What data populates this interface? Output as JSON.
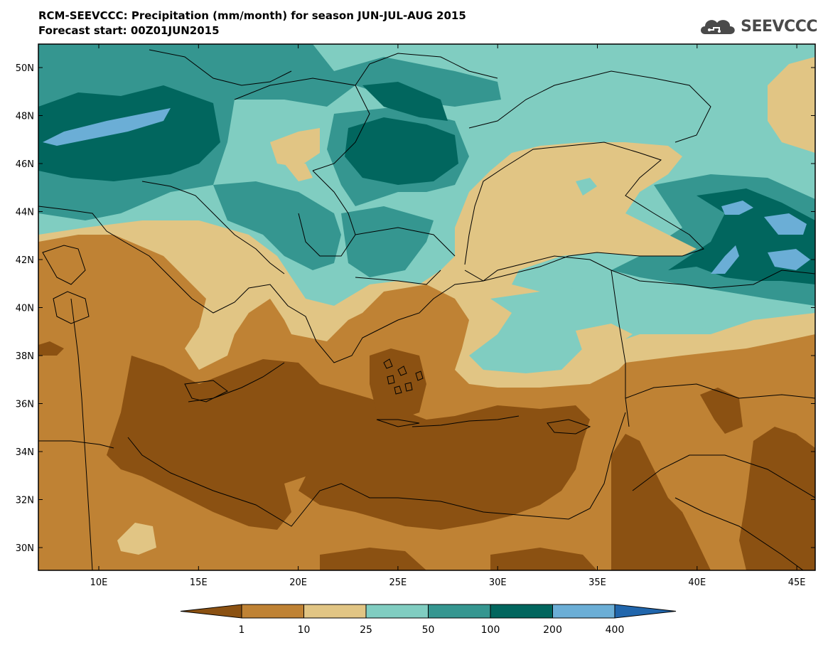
{
  "header": {
    "title_line1": "RCM-SEEVCCC: Precipitation (mm/month) for season JUN-JUL-AUG 2015",
    "title_line2": "Forecast start: 00Z01JUN2015"
  },
  "logo": {
    "text": "SEEVCCC",
    "icon": "cloud-icon"
  },
  "map": {
    "lat_labels": [
      "50N",
      "48N",
      "46N",
      "44N",
      "42N",
      "40N",
      "38N",
      "36N",
      "34N",
      "32N",
      "30N"
    ],
    "lon_labels": [
      "10E",
      "15E",
      "20E",
      "25E",
      "30E",
      "35E",
      "40E",
      "45E"
    ]
  },
  "colorbar": {
    "colors": [
      "#8b5112",
      "#bf8234",
      "#e1c584",
      "#80cdc1",
      "#359690",
      "#01665e",
      "#6baed6",
      "#2166ac"
    ],
    "labels": [
      "1",
      "10",
      "25",
      "50",
      "100",
      "200",
      "400"
    ]
  }
}
